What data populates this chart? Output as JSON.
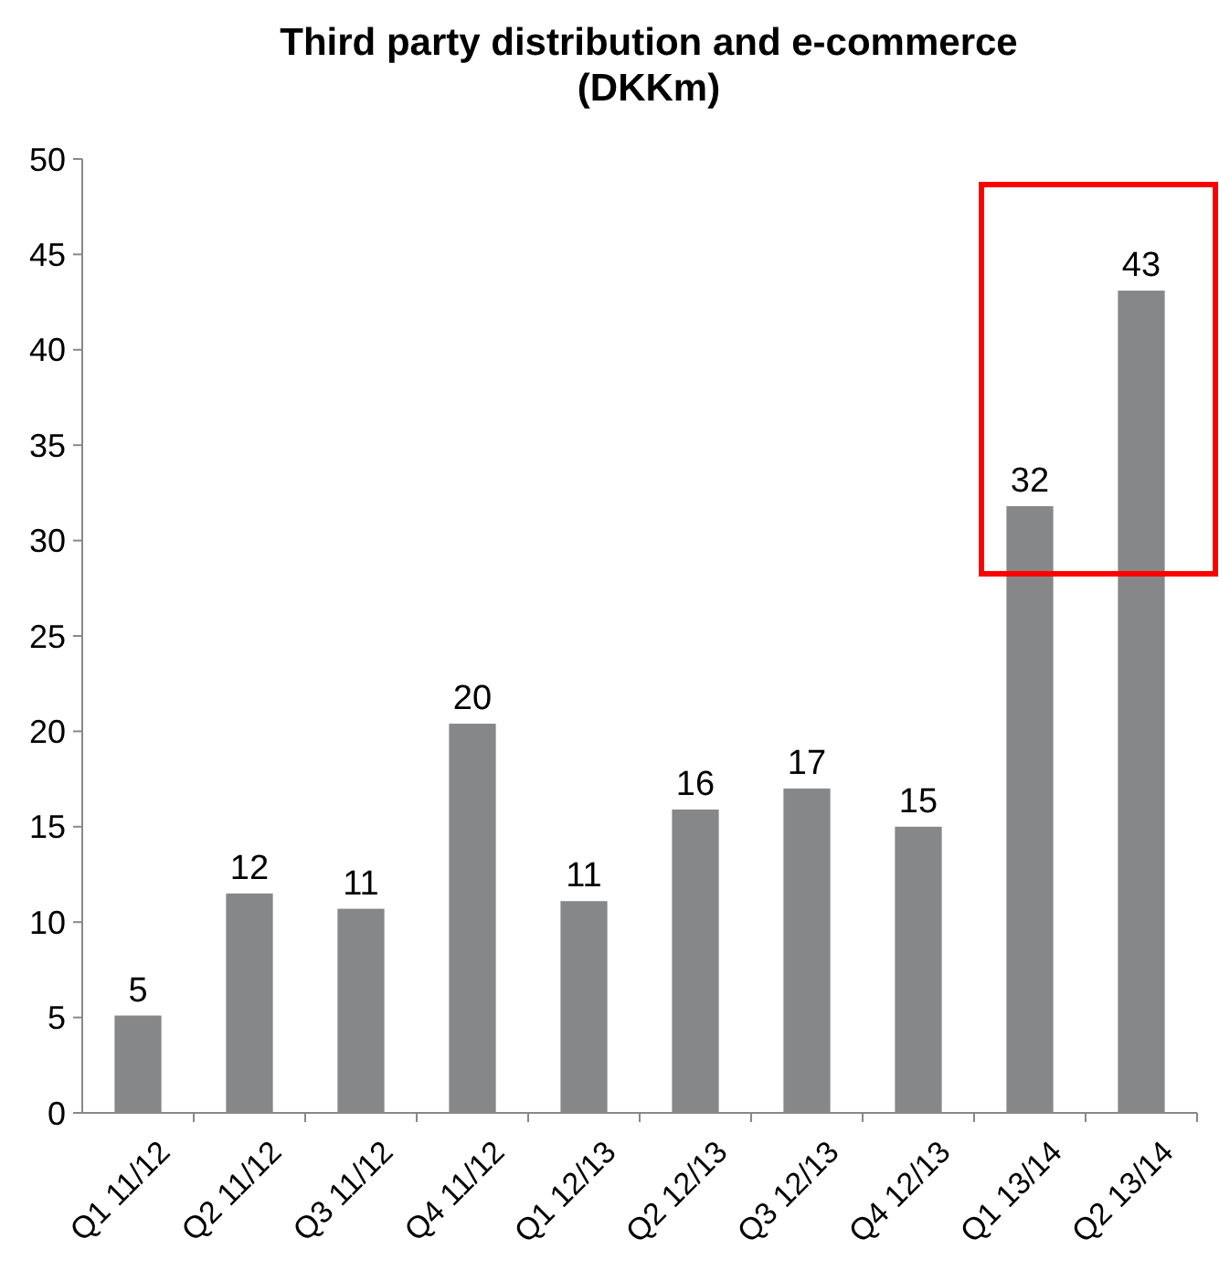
{
  "chart_data": {
    "type": "bar",
    "title": "Third party distribution and e-commerce (DKKm)",
    "categories": [
      "Q1 11/12",
      "Q2 11/12",
      "Q3 11/12",
      "Q4 11/12",
      "Q1 12/13",
      "Q2 12/13",
      "Q3 12/13",
      "Q4 12/13",
      "Q1 13/14",
      "Q2 13/14"
    ],
    "values": [
      5.1,
      11.5,
      10.7,
      20.4,
      11.1,
      15.9,
      17.0,
      15.0,
      31.8,
      43.1
    ],
    "value_labels": [
      "5",
      "12",
      "11",
      "20",
      "11",
      "16",
      "17",
      "15",
      "32",
      "43"
    ],
    "color": "#858789",
    "ylim": [
      0,
      50
    ],
    "yticks": [
      0,
      5,
      10,
      15,
      20,
      25,
      30,
      35,
      40,
      45,
      50
    ],
    "grid": false
  }
}
